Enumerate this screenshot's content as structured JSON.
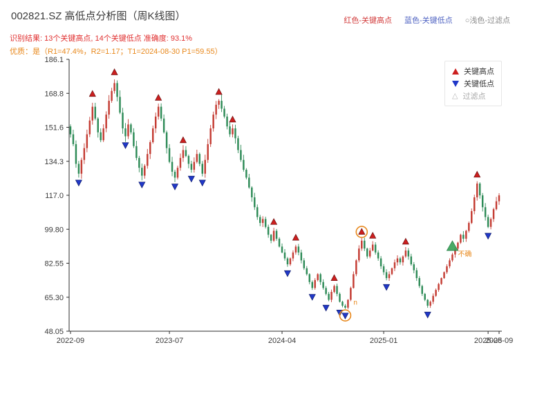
{
  "header": {
    "title": "002821.SZ 高低点分析图（周K线图）",
    "legend_top": [
      {
        "label": "红色-关键高点",
        "color": "#d23c3c"
      },
      {
        "label": "蓝色-关键低点",
        "color": "#4f63c2"
      },
      {
        "label": "○浅色-过滤点",
        "color": "#8a8a8a"
      }
    ],
    "result_line": "识别结果: 13个关键高点, 14个关键低点  准确度: 93.1%",
    "quality_line": "优质：是（R1=47.4%，R2=1.17；T1=2024-08-30 P1=59.55）"
  },
  "chart_legend": {
    "items": [
      {
        "label": "关键高点",
        "type": "key-high"
      },
      {
        "label": "关键低点",
        "type": "key-low"
      },
      {
        "label": "过滤点",
        "type": "filtered",
        "glyph": "△"
      }
    ]
  },
  "chart_data": {
    "type": "candlestick",
    "title": "002821.SZ 周K线 高低点分析",
    "ylim": [
      48.05,
      186.05
    ],
    "y_ticks": [
      {
        "value": 48.05,
        "label": "48.05"
      },
      {
        "value": 65.3,
        "label": "65.30"
      },
      {
        "value": 82.55,
        "label": "82.55"
      },
      {
        "value": 99.8,
        "label": "99.80"
      },
      {
        "value": 117.05,
        "label": "117.0"
      },
      {
        "value": 134.3,
        "label": "134.3"
      },
      {
        "value": 151.55,
        "label": "151.6"
      },
      {
        "value": 168.8,
        "label": "168.8"
      },
      {
        "value": 186.05,
        "label": "186.1"
      }
    ],
    "x_ticks": [
      {
        "week": 0,
        "label": "2022-09"
      },
      {
        "week": 36,
        "label": "2023-07"
      },
      {
        "week": 77,
        "label": "2024-04"
      },
      {
        "week": 114,
        "label": "2025-01"
      },
      {
        "week": 152,
        "label": "2025-08"
      },
      {
        "week": 156,
        "label": "2025-09"
      }
    ],
    "weekly_closes": [
      148,
      143,
      133,
      128,
      135,
      141,
      148,
      155,
      162,
      156,
      149,
      145,
      151,
      158,
      165,
      170,
      174,
      167,
      159,
      151,
      147,
      153,
      149,
      142,
      136,
      131,
      127,
      132,
      138,
      144,
      151,
      157,
      162,
      156,
      149,
      141,
      134,
      129,
      126,
      131,
      136,
      140,
      137,
      133,
      130,
      134,
      138,
      133,
      128,
      135,
      143,
      151,
      158,
      163,
      165,
      161,
      157,
      152,
      148,
      151,
      146,
      140,
      135,
      130,
      126,
      121,
      116,
      111,
      106,
      103,
      105,
      101,
      97,
      94,
      99,
      95,
      91,
      88,
      85,
      82,
      85,
      88,
      91,
      88,
      84,
      80,
      77,
      73,
      70,
      74,
      77,
      73,
      70,
      67,
      64,
      68,
      71,
      67,
      63,
      61,
      60,
      64,
      70,
      77,
      84,
      90,
      94,
      90,
      86,
      89,
      92,
      88,
      85,
      81,
      78,
      75,
      77,
      80,
      83,
      85,
      83,
      86,
      89,
      86,
      82,
      79,
      75,
      71,
      67,
      64,
      61,
      63,
      66,
      69,
      72,
      75,
      78,
      81,
      84,
      87,
      90,
      93,
      97,
      95,
      99,
      103,
      109,
      116,
      123,
      117,
      111,
      106,
      101,
      105,
      110,
      114,
      117
    ],
    "key_highs": [
      {
        "week": 8,
        "price": 166
      },
      {
        "week": 16,
        "price": 177
      },
      {
        "week": 32,
        "price": 164
      },
      {
        "week": 41,
        "price": 142.5
      },
      {
        "week": 54,
        "price": 167
      },
      {
        "week": 59,
        "price": 153
      },
      {
        "week": 74,
        "price": 101
      },
      {
        "week": 82,
        "price": 93
      },
      {
        "week": 96,
        "price": 72.5
      },
      {
        "week": 106,
        "price": 96
      },
      {
        "week": 110,
        "price": 94
      },
      {
        "week": 122,
        "price": 91
      },
      {
        "week": 148,
        "price": 125
      }
    ],
    "key_lows": [
      {
        "week": 3,
        "price": 126
      },
      {
        "week": 20,
        "price": 145
      },
      {
        "week": 26,
        "price": 125
      },
      {
        "week": 38,
        "price": 124
      },
      {
        "week": 44,
        "price": 128
      },
      {
        "week": 48,
        "price": 126
      },
      {
        "week": 79,
        "price": 80
      },
      {
        "week": 88,
        "price": 68
      },
      {
        "week": 93,
        "price": 62.5
      },
      {
        "week": 98,
        "price": 60
      },
      {
        "week": 100,
        "price": 58.5
      },
      {
        "week": 115,
        "price": 73
      },
      {
        "week": 130,
        "price": 59
      },
      {
        "week": 152,
        "price": 99
      }
    ],
    "filtered_points": [
      {
        "week": 100,
        "price": 58.5,
        "shape": "circle",
        "dy": 7
      },
      {
        "week": 106,
        "price": 96,
        "shape": "circle",
        "dy": -7
      },
      {
        "week": 139,
        "price": 89,
        "shape": "triangle-up"
      }
    ],
    "annotations": [
      {
        "week": 103,
        "price": 61.5,
        "text": "n"
      },
      {
        "week": 141,
        "price": 86,
        "text": "不确"
      }
    ],
    "colors": {
      "up": "#c43c33",
      "down": "#2e8b57",
      "key_high": "#cc1f1f",
      "key_low": "#2038c8",
      "filtered_accent": "#e8881c",
      "filtered_green": "#3aa35a",
      "axis": "#2b2b2b"
    }
  }
}
